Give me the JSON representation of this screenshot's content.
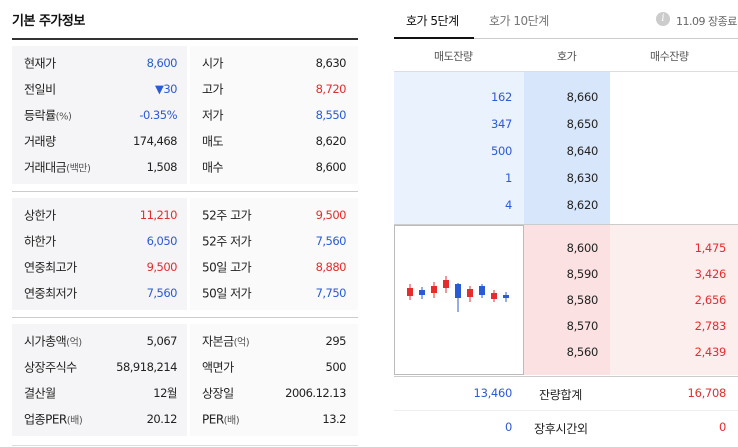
{
  "left": {
    "title": "기본 주가정보",
    "groups": [
      {
        "rows": [
          {
            "l_label": "현재가",
            "l_unit": "",
            "l_value": "8,600",
            "l_color": "blue",
            "r_label": "시가",
            "r_unit": "",
            "r_value": "8,630",
            "r_color": ""
          },
          {
            "l_label": "전일비",
            "l_unit": "",
            "l_value": "▼30",
            "l_color": "blue",
            "r_label": "고가",
            "r_unit": "",
            "r_value": "8,720",
            "r_color": "red"
          },
          {
            "l_label": "등락률",
            "l_unit": "(%)",
            "l_value": "-0.35%",
            "l_color": "blue",
            "r_label": "저가",
            "r_unit": "",
            "r_value": "8,550",
            "r_color": "blue"
          },
          {
            "l_label": "거래량",
            "l_unit": "",
            "l_value": "174,468",
            "l_color": "",
            "r_label": "매도",
            "r_unit": "",
            "r_value": "8,620",
            "r_color": ""
          },
          {
            "l_label": "거래대금",
            "l_unit": "(백만)",
            "l_value": "1,508",
            "l_color": "",
            "r_label": "매수",
            "r_unit": "",
            "r_value": "8,600",
            "r_color": ""
          }
        ]
      },
      {
        "rows": [
          {
            "l_label": "상한가",
            "l_unit": "",
            "l_value": "11,210",
            "l_color": "red",
            "r_label": "52주 고가",
            "r_unit": "",
            "r_value": "9,500",
            "r_color": "red"
          },
          {
            "l_label": "하한가",
            "l_unit": "",
            "l_value": "6,050",
            "l_color": "blue",
            "r_label": "52주 저가",
            "r_unit": "",
            "r_value": "7,560",
            "r_color": "blue"
          },
          {
            "l_label": "연중최고가",
            "l_unit": "",
            "l_value": "9,500",
            "l_color": "red",
            "r_label": "50일 고가",
            "r_unit": "",
            "r_value": "8,880",
            "r_color": "red"
          },
          {
            "l_label": "연중최저가",
            "l_unit": "",
            "l_value": "7,560",
            "l_color": "blue",
            "r_label": "50일 저가",
            "r_unit": "",
            "r_value": "7,750",
            "r_color": "blue"
          }
        ]
      },
      {
        "rows": [
          {
            "l_label": "시가총액",
            "l_unit": "(억)",
            "l_value": "5,067",
            "l_color": "",
            "r_label": "자본금",
            "r_unit": "(억)",
            "r_value": "295",
            "r_color": ""
          },
          {
            "l_label": "상장주식수",
            "l_unit": "",
            "l_value": "58,918,214",
            "l_color": "",
            "r_label": "액면가",
            "r_unit": "",
            "r_value": "500",
            "r_color": ""
          },
          {
            "l_label": "결산월",
            "l_unit": "",
            "l_value": "12월",
            "l_color": "",
            "r_label": "상장일",
            "r_unit": "",
            "r_value": "2006.12.13",
            "r_color": ""
          },
          {
            "l_label": "업종PER",
            "l_unit": "(배)",
            "l_value": "20.12",
            "l_color": "",
            "r_label": "PER",
            "r_unit": "(배)",
            "r_value": "13.2",
            "r_color": ""
          }
        ]
      }
    ]
  },
  "right": {
    "tab_active": "호가 5단계",
    "tab_inactive": "호가 10단계",
    "info_icon": "i",
    "info_text": "11.09 장종료",
    "col_sell": "매도잔량",
    "col_price": "호가",
    "col_buy": "매수잔량",
    "asks": [
      {
        "qty": "162",
        "price": "8,660"
      },
      {
        "qty": "347",
        "price": "8,650"
      },
      {
        "qty": "500",
        "price": "8,640"
      },
      {
        "qty": "1",
        "price": "8,630"
      },
      {
        "qty": "4",
        "price": "8,620"
      }
    ],
    "bids": [
      {
        "price": "8,600",
        "qty": "1,475"
      },
      {
        "price": "8,590",
        "qty": "3,426"
      },
      {
        "price": "8,580",
        "qty": "2,656"
      },
      {
        "price": "8,570",
        "qty": "2,783"
      },
      {
        "price": "8,560",
        "qty": "2,439"
      }
    ],
    "sum_label": "잔량합계",
    "sum_sell": "13,460",
    "sum_buy": "16,708",
    "after_label": "장후시간외",
    "after_sell": "0",
    "after_buy": "0",
    "colors": {
      "red": "#e52d2d",
      "blue": "#2a5bd7"
    }
  }
}
